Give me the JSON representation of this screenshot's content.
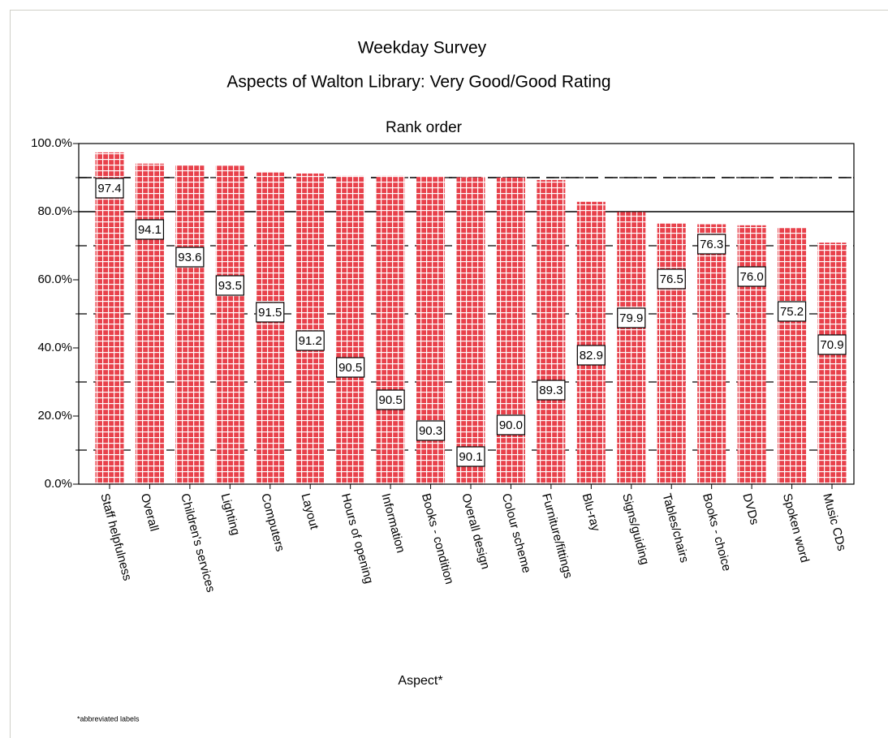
{
  "chart_data": {
    "type": "bar",
    "title": "Weekday Survey",
    "subtitle": "Aspects of Walton Library:  Very Good/Good Rating",
    "caption": "Rank order",
    "x_label": "Aspect*",
    "footnote": "*abbreviated labels",
    "categories": [
      "Staff helpfulness",
      "Overall",
      "Children's services",
      "Lighting",
      "Computers",
      "Layout",
      "Hours of opening",
      "Information",
      "Books - condition",
      "Overall design",
      "Colour scheme",
      "Furniture/fittings",
      "Blu-ray",
      "Signs/guiding",
      "Tables/chairs",
      "Books - choice",
      "DVDs",
      "Spoken word",
      "Music CDs"
    ],
    "values": [
      97.4,
      94.1,
      93.6,
      93.5,
      91.5,
      91.2,
      90.5,
      90.5,
      90.3,
      90.1,
      90.0,
      89.3,
      82.9,
      79.9,
      76.5,
      76.3,
      76.0,
      75.2,
      70.9
    ],
    "value_labels": [
      "97.4",
      "94.1",
      "93.6",
      "93.5",
      "91.5",
      "91.2",
      "90.5",
      "90.5",
      "90.3",
      "90.1",
      "90.0",
      "89.3",
      "82.9",
      "79.9",
      "76.5",
      "76.3",
      "76.0",
      "75.2",
      "70.9"
    ],
    "color": "#e8414b",
    "ylim": [
      0,
      100
    ],
    "yticks": [
      {
        "value": 0,
        "label": "0.0%"
      },
      {
        "value": 20,
        "label": "20.0%"
      },
      {
        "value": 40,
        "label": "40.0%"
      },
      {
        "value": 60,
        "label": "60.0%"
      },
      {
        "value": 80,
        "label": "80.0%"
      },
      {
        "value": 100,
        "label": "100.0%"
      }
    ],
    "minor_yticks": [
      10,
      30,
      50,
      70,
      90
    ],
    "reference_lines": [
      {
        "value": 90,
        "style": "dashed"
      },
      {
        "value": 80,
        "style": "solid"
      }
    ]
  }
}
